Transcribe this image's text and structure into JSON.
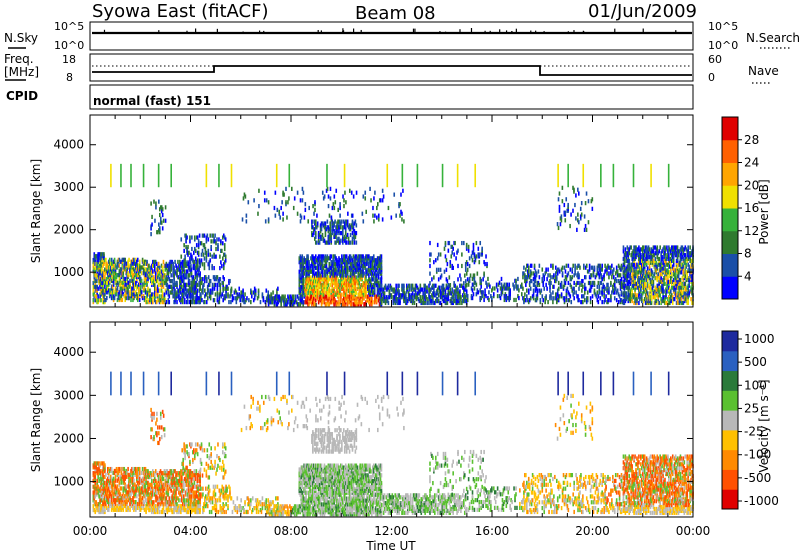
{
  "header": {
    "station": "Syowa East (fitACF)",
    "beam": "Beam 08",
    "date": "01/Jun/2009"
  },
  "top_panels": {
    "nsky_label": "N.Sky",
    "nsky_ticks": [
      "10^5",
      "10^0"
    ],
    "nsearch_label": "N.Search",
    "nsearch_ticks": [
      "10^5",
      "10^0"
    ],
    "freq_label_1": "Freq.",
    "freq_label_2": "[MHz]",
    "freq_ticks": [
      "18",
      "8"
    ],
    "nave_label": "Nave",
    "nave_ticks": [
      "60",
      "0"
    ],
    "cpid_label": "CPID",
    "cpid_text": "normal (fast) 151"
  },
  "colors": {
    "power": [
      "#0000ff",
      "#1a4fa8",
      "#2f7a2f",
      "#36b23a",
      "#f0e000",
      "#ffa500",
      "#ff6000",
      "#e00000"
    ],
    "velocity_pos": [
      "#1e2a9e",
      "#2a60c0",
      "#2a7a3a",
      "#5ac030"
    ],
    "velocity_neg": [
      "#ffc000",
      "#ff8a00",
      "#ff5000",
      "#e00000"
    ],
    "velocity_gray": "#b8b8b8"
  },
  "chart_data": [
    {
      "type": "heatmap",
      "panel": "power",
      "ylabel": "Slant Range [km]",
      "xlabel": "Time UT",
      "x_ticks": [
        "00:00",
        "04:00",
        "08:00",
        "12:00",
        "16:00",
        "20:00",
        "00:00"
      ],
      "y_ticks": [
        1000,
        2000,
        3000,
        4000
      ],
      "ylim": [
        180,
        4700
      ],
      "colorbar_label": "Power [dB]",
      "colorbar_ticks": [
        "4",
        "8",
        "12",
        "16",
        "20",
        "24",
        "28"
      ]
    },
    {
      "type": "heatmap",
      "panel": "velocity",
      "ylabel": "Slant Range [km]",
      "xlabel": "Time UT",
      "x_ticks": [
        "00:00",
        "04:00",
        "08:00",
        "12:00",
        "16:00",
        "20:00",
        "00:00"
      ],
      "y_ticks": [
        1000,
        2000,
        3000,
        4000
      ],
      "ylim": [
        180,
        4700
      ],
      "colorbar_label": "Velocity [m s⁻¹]",
      "colorbar_ticks": [
        "1000",
        "500",
        "100",
        "25",
        "-25",
        "-100",
        "-500",
        "-1000"
      ]
    }
  ]
}
